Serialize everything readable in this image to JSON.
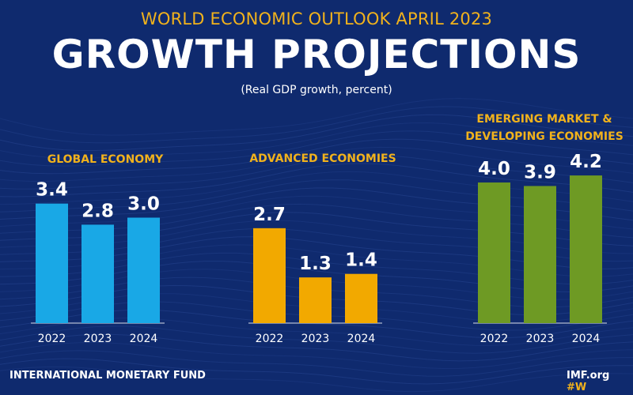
{
  "header": {
    "supertitle": "WORLD ECONOMIC OUTLOOK APRIL 2023",
    "title": "GROWTH PROJECTIONS",
    "subtitle": "(Real GDP growth, percent)"
  },
  "footer": {
    "left": "INTERNATIONAL MONETARY FUND",
    "right": "IMF.org",
    "right_tag": "#W"
  },
  "colors": {
    "background": "#0f2a6e",
    "accent": "#f1b21c",
    "global": "#19a8e6",
    "advanced": "#f2a900",
    "emerging": "#6e9a24"
  },
  "chart_data": [
    {
      "type": "bar",
      "title": "GLOBAL ECONOMY",
      "categories": [
        "2022",
        "2023",
        "2024"
      ],
      "values": [
        3.4,
        2.8,
        3.0
      ],
      "labels": [
        "3.4",
        "2.8",
        "3.0"
      ],
      "color": "#19a8e6",
      "ylim": [
        0,
        5
      ]
    },
    {
      "type": "bar",
      "title": "ADVANCED ECONOMIES",
      "categories": [
        "2022",
        "2023",
        "2024"
      ],
      "values": [
        2.7,
        1.3,
        1.4
      ],
      "labels": [
        "2.7",
        "1.3",
        "1.4"
      ],
      "color": "#f2a900",
      "ylim": [
        0,
        5
      ]
    },
    {
      "type": "bar",
      "title": "EMERGING MARKET & DEVELOPING ECONOMIES",
      "title_lines": [
        "EMERGING MARKET &",
        "DEVELOPING ECONOMIES"
      ],
      "categories": [
        "2022",
        "2023",
        "2024"
      ],
      "values": [
        4.0,
        3.9,
        4.2
      ],
      "labels": [
        "4.0",
        "3.9",
        "4.2"
      ],
      "color": "#6e9a24",
      "ylim": [
        0,
        5
      ]
    }
  ]
}
